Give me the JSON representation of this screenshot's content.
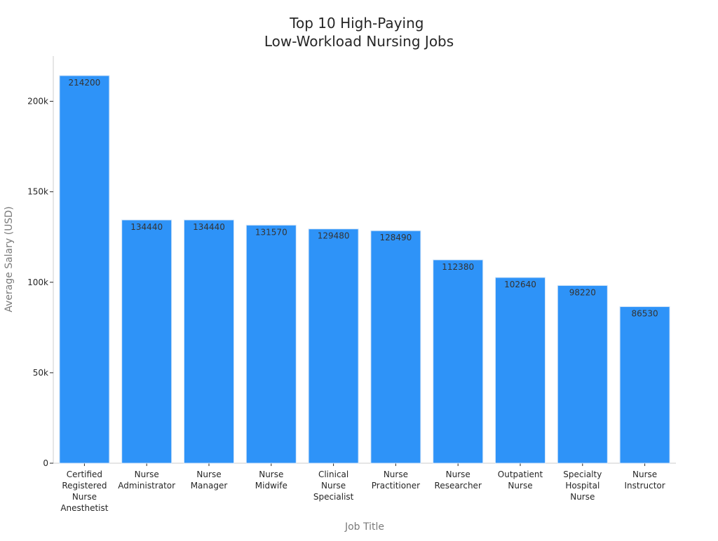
{
  "chart_data": {
    "type": "bar",
    "title": [
      "Top 10 High-Paying",
      "Low-Workload Nursing Jobs"
    ],
    "xlabel": "Job Title",
    "ylabel": "Average Salary (USD)",
    "ylim": [
      0,
      225000
    ],
    "yticks": [
      {
        "value": 0,
        "label": "0"
      },
      {
        "value": 50000,
        "label": "50k"
      },
      {
        "value": 100000,
        "label": "100k"
      },
      {
        "value": 150000,
        "label": "150k"
      },
      {
        "value": 200000,
        "label": "200k"
      }
    ],
    "categories": [
      [
        "Certified",
        "Registered",
        "Nurse",
        "Anesthetist"
      ],
      [
        "Nurse",
        "Administrator"
      ],
      [
        "Nurse",
        "Manager"
      ],
      [
        "Nurse",
        "Midwife"
      ],
      [
        "Clinical",
        "Nurse",
        "Specialist"
      ],
      [
        "Nurse",
        "Practitioner"
      ],
      [
        "Nurse",
        "Researcher"
      ],
      [
        "Outpatient",
        "Nurse"
      ],
      [
        "Specialty",
        "Hospital",
        "Nurse"
      ],
      [
        "Nurse",
        "Instructor"
      ]
    ],
    "values": [
      214200,
      134440,
      134440,
      131570,
      129480,
      128490,
      112380,
      102640,
      98220,
      86530
    ],
    "data_labels": [
      "214200",
      "134440",
      "134440",
      "131570",
      "129480",
      "128490",
      "112380",
      "102640",
      "98220",
      "86530"
    ],
    "bar_color": "#2e93f8",
    "bar_edge_color": "#d6e6f7",
    "axis_color": "#cccccc",
    "grid": false,
    "legend": "none"
  }
}
